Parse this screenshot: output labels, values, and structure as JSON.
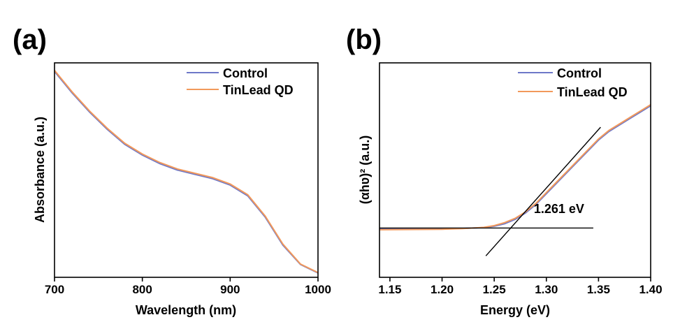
{
  "chart_data": [
    {
      "panel_label": "(a)",
      "type": "line",
      "xlabel": "Wavelength (nm)",
      "ylabel": "Absorbance (a.u.)",
      "xlim": [
        700,
        1000
      ],
      "ylim": [
        0,
        1
      ],
      "xticks": [
        "700",
        "800",
        "900",
        "1000"
      ],
      "xtick_values": [
        700,
        800,
        900,
        1000
      ],
      "show_y_ticks": false,
      "legend_position": "top-right",
      "series": [
        {
          "name": "Control",
          "color": "#6e78c8",
          "x": [
            700,
            720,
            740,
            760,
            780,
            800,
            820,
            840,
            860,
            880,
            900,
            920,
            940,
            960,
            980,
            1000
          ],
          "y": [
            0.96,
            0.86,
            0.77,
            0.69,
            0.62,
            0.57,
            0.53,
            0.5,
            0.48,
            0.46,
            0.43,
            0.38,
            0.28,
            0.15,
            0.06,
            0.02
          ]
        },
        {
          "name": "TinLead QD",
          "color": "#f2995b",
          "x": [
            700,
            720,
            740,
            760,
            780,
            800,
            820,
            840,
            860,
            880,
            900,
            920,
            940,
            960,
            980,
            1000
          ],
          "y": [
            0.965,
            0.865,
            0.775,
            0.695,
            0.625,
            0.575,
            0.535,
            0.505,
            0.485,
            0.465,
            0.435,
            0.385,
            0.285,
            0.155,
            0.062,
            0.022
          ]
        }
      ]
    },
    {
      "panel_label": "(b)",
      "type": "line",
      "xlabel": "Energy (eV)",
      "ylabel": "(αhʋ)² (a.u.)",
      "xlim": [
        1.14,
        1.4
      ],
      "ylim": [
        0,
        1
      ],
      "xticks": [
        "1.15",
        "1.20",
        "1.25",
        "1.30",
        "1.35",
        "1.40"
      ],
      "xtick_values": [
        1.15,
        1.2,
        1.25,
        1.3,
        1.35,
        1.4
      ],
      "show_y_ticks": false,
      "legend_position": "top-right",
      "series": [
        {
          "name": "Control",
          "color": "#6e78c8",
          "x": [
            1.14,
            1.2,
            1.22,
            1.24,
            1.25,
            1.26,
            1.27,
            1.28,
            1.29,
            1.3,
            1.31,
            1.32,
            1.33,
            1.34,
            1.35,
            1.36,
            1.37,
            1.38,
            1.39,
            1.4
          ],
          "y": [
            0.225,
            0.226,
            0.228,
            0.232,
            0.238,
            0.25,
            0.27,
            0.3,
            0.34,
            0.39,
            0.44,
            0.49,
            0.54,
            0.59,
            0.64,
            0.68,
            0.71,
            0.74,
            0.77,
            0.8
          ]
        },
        {
          "name": "TinLead QD",
          "color": "#f2995b",
          "x": [
            1.14,
            1.2,
            1.22,
            1.24,
            1.25,
            1.26,
            1.27,
            1.28,
            1.29,
            1.3,
            1.31,
            1.32,
            1.33,
            1.34,
            1.35,
            1.36,
            1.37,
            1.38,
            1.39,
            1.4
          ],
          "y": [
            0.222,
            0.224,
            0.227,
            0.233,
            0.241,
            0.255,
            0.275,
            0.305,
            0.345,
            0.395,
            0.445,
            0.495,
            0.545,
            0.595,
            0.645,
            0.685,
            0.715,
            0.745,
            0.775,
            0.805
          ]
        }
      ],
      "fit_lines": [
        {
          "x": [
            1.242,
            1.352
          ],
          "y": [
            0.1,
            0.7
          ]
        },
        {
          "x": [
            1.14,
            1.345
          ],
          "y": [
            0.23,
            0.23
          ]
        }
      ],
      "annotation": {
        "text": "1.261 eV",
        "x": 1.288,
        "y": 0.3
      }
    }
  ]
}
